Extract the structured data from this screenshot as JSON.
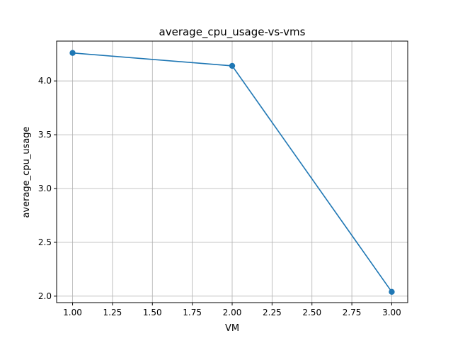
{
  "chart_data": {
    "type": "line",
    "title": "average_cpu_usage-vs-vms",
    "xlabel": "VM",
    "ylabel": "average_cpu_usage",
    "xlim": [
      0.9,
      3.1
    ],
    "ylim": [
      1.94,
      4.37
    ],
    "x_ticks": [
      1.0,
      1.25,
      1.5,
      1.75,
      2.0,
      2.25,
      2.5,
      2.75,
      3.0
    ],
    "x_tick_labels": [
      "1.00",
      "1.25",
      "1.50",
      "1.75",
      "2.00",
      "2.25",
      "2.50",
      "2.75",
      "3.00"
    ],
    "y_ticks": [
      2.0,
      2.5,
      3.0,
      3.5,
      4.0
    ],
    "y_tick_labels": [
      "2.0",
      "2.5",
      "3.0",
      "3.5",
      "4.0"
    ],
    "grid": true,
    "series": [
      {
        "x": [
          1.0,
          2.0,
          3.0
        ],
        "y": [
          4.26,
          4.14,
          2.04
        ],
        "color": "#1f77b4",
        "marker": "circle"
      }
    ]
  }
}
